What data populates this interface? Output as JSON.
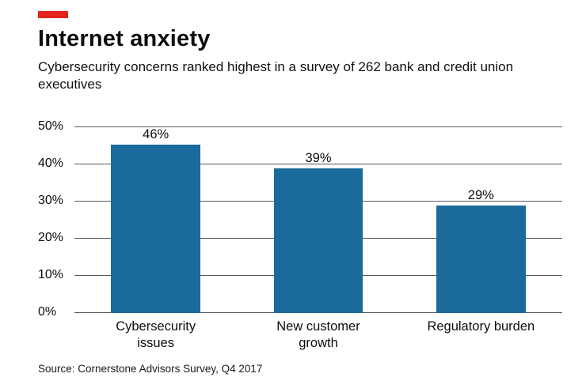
{
  "accent_color": "#e1251b",
  "header": {
    "title": "Internet anxiety",
    "subtitle": "Cybersecurity concerns ranked highest in a survey of 262 bank and credit union executives"
  },
  "source": "Source: Cornerstone Advisors Survey, Q4 2017",
  "chart_data": {
    "type": "bar",
    "title": "Internet anxiety",
    "subtitle": "Cybersecurity concerns ranked highest in a survey of 262 bank and credit union executives",
    "categories": [
      "Cybersecurity issues",
      "New customer growth",
      "Regulatory burden"
    ],
    "category_display": [
      "Cybersecurity\nissues",
      "New customer\ngrowth",
      "Regulatory burden"
    ],
    "values": [
      46,
      39,
      29
    ],
    "value_labels": [
      "46%",
      "39%",
      "29%"
    ],
    "xlabel": "",
    "ylabel": "",
    "ylim": [
      0,
      50
    ],
    "ytick_step": 10,
    "ytick_labels": [
      "0%",
      "10%",
      "20%",
      "30%",
      "40%",
      "50%"
    ],
    "bar_color": "#1b6a9c",
    "grid": true,
    "legend": "none",
    "source": "Source: Cornerstone Advisors Survey, Q4 2017"
  }
}
